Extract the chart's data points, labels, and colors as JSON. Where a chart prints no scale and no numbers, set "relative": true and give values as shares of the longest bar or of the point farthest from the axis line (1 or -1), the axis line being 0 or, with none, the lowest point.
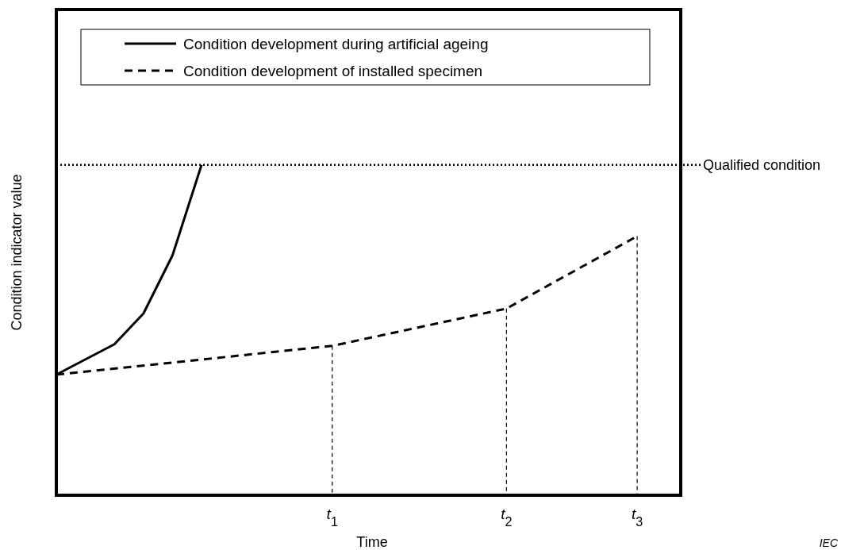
{
  "chart_data": {
    "type": "line",
    "relative": true,
    "xlabel": "Time",
    "ylabel": "Condition indicator value",
    "categories": [
      null,
      null,
      null,
      null,
      null,
      null,
      null,
      null,
      null,
      null,
      null,
      null,
      null,
      null,
      null,
      null,
      null,
      null,
      null,
      "t$_{1}$",
      null,
      null,
      null,
      null,
      null,
      null,
      null,
      null,
      null,
      null,
      null,
      "t$_{2}$",
      null,
      null,
      null,
      null,
      null,
      null,
      null,
      null,
      "t$_{3}$",
      null,
      null,
      null
    ],
    "series": [
      {
        "name": "Condition development during artificial ageing",
        "color": "#000000",
        "line_style": "solid",
        "values": [
          0.365,
          null,
          null,
          null,
          0.457,
          null,
          0.55,
          null,
          0.726,
          null,
          1,
          null,
          null,
          null,
          null,
          null,
          null,
          null,
          null,
          null,
          null,
          null,
          null,
          null,
          null,
          null,
          null,
          null,
          null,
          null,
          null,
          null,
          null,
          null,
          null,
          null,
          null,
          null,
          null,
          null,
          null,
          null,
          null,
          null
        ]
      },
      {
        "name": "Condition development of installed specimen",
        "color": "#000000",
        "line_style": "dashed",
        "values": [
          0.365,
          null,
          null,
          null,
          null,
          null,
          null,
          null,
          null,
          null,
          null,
          null,
          null,
          null,
          null,
          null,
          null,
          null,
          null,
          0.452,
          null,
          null,
          null,
          null,
          null,
          null,
          null,
          null,
          null,
          null,
          null,
          0.565,
          null,
          null,
          null,
          null,
          null,
          null,
          null,
          null,
          0.784,
          null,
          null,
          null
        ]
      }
    ],
    "ref_lines": [
      {
        "axis": "y",
        "value": 1,
        "label": "Qualified condition",
        "line_style": "dotted",
        "color": "#000000"
      },
      {
        "axis": "x",
        "value": "t$_{1}$",
        "line_style": "dashed",
        "color": "#000000"
      },
      {
        "axis": "x",
        "value": "t$_{2}$",
        "line_style": "dashed",
        "color": "#000000"
      },
      {
        "axis": "x",
        "value": "t$_{3}$",
        "line_style": "dashed",
        "color": "#000000"
      }
    ],
    "legend": "top left",
    "tick_labels": "x",
    "annotations": [
      "IEC"
    ]
  }
}
